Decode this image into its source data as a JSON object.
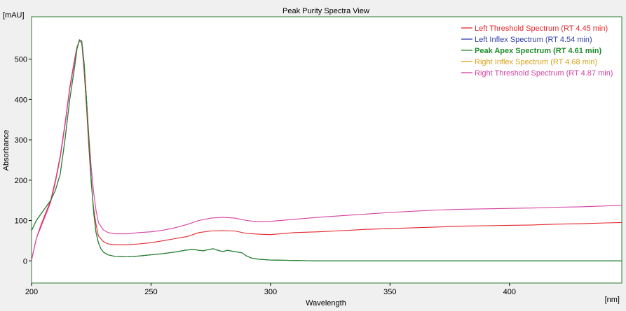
{
  "chart_data": {
    "type": "line",
    "title": "Peak Purity Spectra View",
    "xlabel": "Wavelength",
    "ylabel": "Absorbance",
    "x_unit": "[nm]",
    "y_unit": "[mAU]",
    "xlim": [
      200,
      447
    ],
    "ylim": [
      -55,
      605
    ],
    "x_ticks": [
      200,
      250,
      300,
      350,
      400
    ],
    "y_ticks": [
      0,
      100,
      200,
      300,
      400,
      500
    ],
    "grid": false,
    "legend_position": "top-right",
    "colors": {
      "plot_bg": "#ffffff",
      "frame": "#2e7d32",
      "window_bg": "#f0f0f0"
    },
    "series": [
      {
        "name": "Left Threshold Spectrum (RT 4.45 min)",
        "color": "#e3262b",
        "bold": false,
        "x": [
          200,
          202,
          204,
          206,
          208,
          210,
          212,
          214,
          216,
          218,
          219,
          220,
          221,
          222,
          223,
          224,
          225,
          226,
          227,
          228,
          230,
          232,
          235,
          240,
          245,
          250,
          255,
          260,
          265,
          270,
          275,
          280,
          285,
          290,
          295,
          300,
          310,
          320,
          330,
          340,
          350,
          360,
          370,
          380,
          390,
          400,
          410,
          420,
          430,
          440,
          447
        ],
        "y": [
          2,
          55,
          90,
          120,
          150,
          200,
          260,
          340,
          430,
          500,
          530,
          545,
          540,
          470,
          380,
          280,
          190,
          130,
          90,
          62,
          48,
          42,
          40,
          40,
          42,
          45,
          50,
          55,
          60,
          70,
          74,
          75,
          74,
          68,
          66,
          65,
          70,
          72,
          75,
          78,
          80,
          82,
          84,
          86,
          87,
          88,
          89,
          91,
          92,
          94,
          95
        ]
      },
      {
        "name": "Left Inflex Spectrum (RT 4.54 min)",
        "color": "#2f3fa8",
        "bold": false,
        "x": [
          200,
          202,
          205,
          208,
          210,
          212,
          214,
          216,
          218,
          219,
          220,
          221,
          222,
          223,
          224,
          225,
          226,
          227,
          228,
          229,
          230,
          232,
          235,
          240,
          245,
          250,
          255,
          260,
          265,
          268,
          270,
          272,
          274,
          276,
          278,
          280,
          282,
          284,
          286,
          288,
          290,
          292,
          295,
          300,
          310,
          320,
          340,
          360,
          380,
          400,
          420,
          440,
          447
        ],
        "y": [
          75,
          100,
          125,
          150,
          175,
          215,
          300,
          400,
          480,
          525,
          548,
          545,
          490,
          400,
          300,
          200,
          120,
          70,
          45,
          30,
          22,
          15,
          11,
          10,
          12,
          15,
          18,
          22,
          27,
          28,
          26,
          25,
          28,
          30,
          26,
          23,
          26,
          24,
          22,
          20,
          12,
          7,
          4,
          2,
          1,
          0,
          0,
          0,
          0,
          0,
          0,
          0,
          0
        ]
      },
      {
        "name": "Peak Apex Spectrum (RT 4.61 min)",
        "color": "#1f8a2a",
        "bold": true,
        "x": [
          200,
          202,
          205,
          208,
          210,
          212,
          214,
          216,
          218,
          219,
          220,
          221,
          222,
          223,
          224,
          225,
          226,
          227,
          228,
          229,
          230,
          232,
          235,
          240,
          245,
          250,
          255,
          260,
          265,
          268,
          270,
          272,
          274,
          276,
          278,
          280,
          282,
          284,
          286,
          288,
          290,
          292,
          295,
          300,
          310,
          320,
          340,
          360,
          380,
          400,
          420,
          440,
          447
        ],
        "y": [
          75,
          100,
          125,
          150,
          175,
          215,
          300,
          400,
          480,
          525,
          548,
          545,
          490,
          400,
          300,
          200,
          120,
          70,
          45,
          30,
          22,
          15,
          11,
          10,
          12,
          15,
          18,
          22,
          27,
          28,
          26,
          25,
          28,
          30,
          26,
          23,
          26,
          24,
          22,
          20,
          12,
          7,
          4,
          2,
          1,
          0,
          0,
          0,
          0,
          0,
          0,
          0,
          0
        ]
      },
      {
        "name": "Right Inflex Spectrum (RT 4.68 min)",
        "color": "#d8a21a",
        "bold": false,
        "x": [
          200,
          202,
          205,
          208,
          210,
          212,
          214,
          216,
          218,
          219,
          220,
          221,
          222,
          223,
          224,
          225,
          226,
          227,
          228,
          229,
          230,
          232,
          235,
          240,
          245,
          250,
          255,
          260,
          265,
          268,
          270,
          272,
          274,
          276,
          278,
          280,
          282,
          284,
          286,
          288,
          290,
          292,
          295,
          300,
          310,
          320,
          340,
          360,
          380,
          400,
          420,
          440,
          447
        ],
        "y": [
          75,
          100,
          125,
          150,
          175,
          215,
          300,
          400,
          480,
          525,
          548,
          545,
          490,
          400,
          300,
          200,
          120,
          70,
          45,
          30,
          22,
          15,
          11,
          10,
          12,
          15,
          18,
          22,
          27,
          28,
          26,
          25,
          28,
          30,
          26,
          23,
          26,
          24,
          22,
          20,
          12,
          7,
          4,
          2,
          1,
          0,
          0,
          0,
          0,
          0,
          0,
          0,
          0
        ]
      },
      {
        "name": "Right Threshold Spectrum (RT 4.87 min)",
        "color": "#d63fa3",
        "bold": false,
        "x": [
          200,
          202,
          204,
          206,
          208,
          210,
          212,
          214,
          216,
          218,
          219,
          220,
          221,
          222,
          223,
          224,
          225,
          226,
          227,
          228,
          230,
          232,
          235,
          240,
          245,
          250,
          255,
          260,
          265,
          270,
          275,
          280,
          285,
          290,
          295,
          300,
          310,
          320,
          330,
          340,
          350,
          360,
          370,
          380,
          390,
          400,
          410,
          420,
          430,
          440,
          447
        ],
        "y": [
          2,
          55,
          85,
          115,
          145,
          195,
          255,
          335,
          425,
          495,
          525,
          545,
          540,
          480,
          400,
          310,
          230,
          170,
          125,
          95,
          77,
          70,
          67,
          67,
          70,
          72,
          76,
          82,
          90,
          100,
          106,
          108,
          106,
          100,
          97,
          98,
          103,
          108,
          112,
          116,
          120,
          123,
          126,
          128,
          129,
          130,
          131,
          133,
          134,
          136,
          138
        ]
      }
    ]
  }
}
